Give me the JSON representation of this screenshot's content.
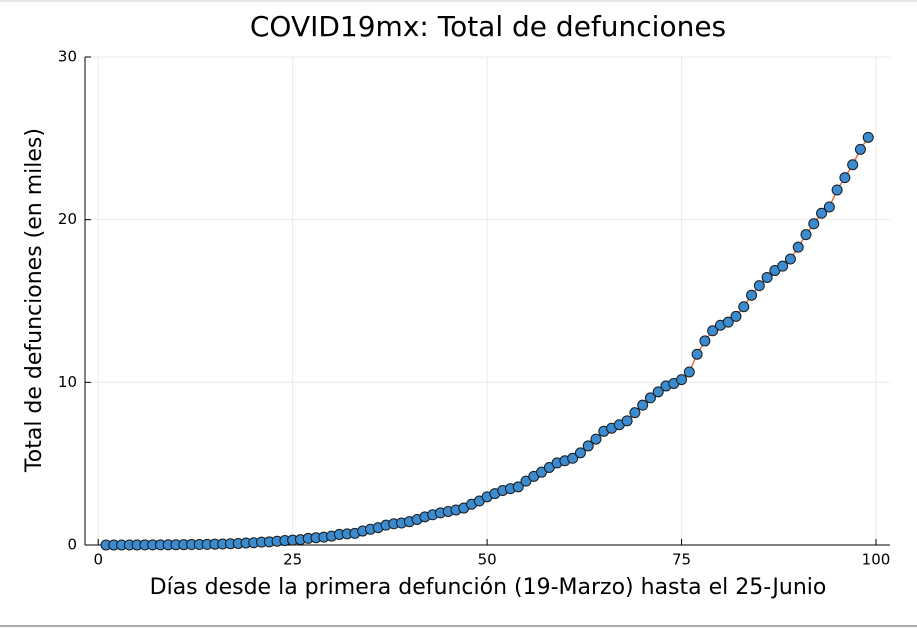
{
  "chart_data": {
    "type": "line",
    "title": "COVID19mx: Total de defunciones",
    "xlabel": "Días desde la primera defunción (19-Marzo) hasta el 25-Junio",
    "ylabel": "Total de defunciones (en miles)",
    "x": [
      1,
      2,
      3,
      4,
      5,
      6,
      7,
      8,
      9,
      10,
      11,
      12,
      13,
      14,
      15,
      16,
      17,
      18,
      19,
      20,
      21,
      22,
      23,
      24,
      25,
      26,
      27,
      28,
      29,
      30,
      31,
      32,
      33,
      34,
      35,
      36,
      37,
      38,
      39,
      40,
      41,
      42,
      43,
      44,
      45,
      46,
      47,
      48,
      49,
      50,
      51,
      52,
      53,
      54,
      55,
      56,
      57,
      58,
      59,
      60,
      61,
      62,
      63,
      64,
      65,
      66,
      67,
      68,
      69,
      70,
      71,
      72,
      73,
      74,
      75,
      76,
      77,
      78,
      79,
      80,
      81,
      82,
      83,
      84,
      85,
      86,
      87,
      88,
      89,
      90,
      91,
      92,
      93,
      94,
      95,
      96,
      97,
      98,
      99
    ],
    "series": [
      {
        "color": "#3b8bd0",
        "line_color": "#e26f46",
        "values": [
          0.001,
          0.002,
          0.002,
          0.002,
          0.004,
          0.005,
          0.006,
          0.008,
          0.012,
          0.016,
          0.02,
          0.028,
          0.029,
          0.037,
          0.05,
          0.06,
          0.079,
          0.094,
          0.125,
          0.141,
          0.174,
          0.194,
          0.233,
          0.273,
          0.296,
          0.332,
          0.406,
          0.449,
          0.486,
          0.546,
          0.65,
          0.686,
          0.712,
          0.857,
          0.97,
          1.069,
          1.221,
          1.305,
          1.351,
          1.434,
          1.569,
          1.732,
          1.859,
          1.972,
          2.061,
          2.154,
          2.271,
          2.507,
          2.704,
          2.961,
          3.16,
          3.353,
          3.465,
          3.573,
          3.926,
          4.22,
          4.477,
          4.767,
          5.045,
          5.177,
          5.332,
          5.666,
          6.09,
          6.51,
          6.989,
          7.179,
          7.394,
          7.633,
          8.134,
          8.597,
          9.044,
          9.415,
          9.779,
          9.93,
          10.167,
          10.637,
          11.729,
          12.545,
          13.17,
          13.511,
          13.699,
          14.053,
          14.649,
          15.357,
          15.944,
          16.448,
          16.872,
          17.141,
          17.58,
          18.31,
          19.08,
          19.747,
          20.394,
          20.781,
          21.825,
          22.584,
          23.377,
          24.324,
          25.06
        ]
      }
    ],
    "xlim": [
      -1.7,
      101.8
    ],
    "xticks": [
      0,
      25,
      50,
      75,
      100
    ],
    "ylim": [
      0,
      30
    ],
    "yticks": [
      0,
      10,
      20,
      30
    ],
    "grid": true
  }
}
